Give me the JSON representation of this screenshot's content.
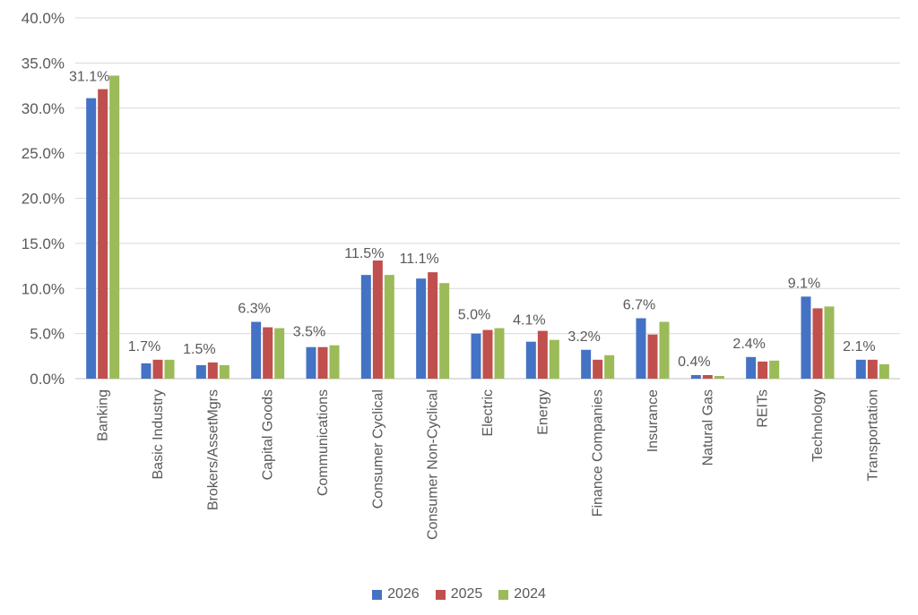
{
  "chart_data": {
    "type": "bar",
    "title": "",
    "xlabel": "",
    "ylabel": "",
    "ylim": [
      0,
      40
    ],
    "yticks": [
      "0.0%",
      "5.0%",
      "10.0%",
      "15.0%",
      "20.0%",
      "25.0%",
      "30.0%",
      "35.0%",
      "40.0%"
    ],
    "grid": true,
    "legend_position": "bottom",
    "categories": [
      "Banking",
      "Basic Industry",
      "Brokers/AssetMgrs",
      "Capital Goods",
      "Communications",
      "Consumer Cyclical",
      "Consumer Non-Cyclical",
      "Electric",
      "Energy",
      "Finance Companies",
      "Insurance",
      "Natural Gas",
      "REITs",
      "Technology",
      "Transportation"
    ],
    "series": [
      {
        "name": "2026",
        "color": "#4472C4",
        "values": [
          31.1,
          1.7,
          1.5,
          6.3,
          3.5,
          11.5,
          11.1,
          5.0,
          4.1,
          3.2,
          6.7,
          0.4,
          2.4,
          9.1,
          2.1
        ]
      },
      {
        "name": "2025",
        "color": "#C0504D",
        "values": [
          32.1,
          2.1,
          1.8,
          5.7,
          3.5,
          13.1,
          11.8,
          5.4,
          5.3,
          2.1,
          4.9,
          0.4,
          1.9,
          7.8,
          2.1
        ]
      },
      {
        "name": "2024",
        "color": "#9BBB59",
        "values": [
          33.6,
          2.1,
          1.5,
          5.6,
          3.7,
          11.5,
          10.6,
          5.6,
          4.3,
          2.6,
          6.3,
          0.3,
          2.0,
          8.0,
          1.6
        ]
      }
    ],
    "data_labels": [
      "31.1%",
      "1.7%",
      "1.5%",
      "6.3%",
      "3.5%",
      "11.5%",
      "11.1%",
      "5.0%",
      "4.1%",
      "3.2%",
      "6.7%",
      "0.4%",
      "2.4%",
      "9.1%",
      "2.1%"
    ]
  }
}
